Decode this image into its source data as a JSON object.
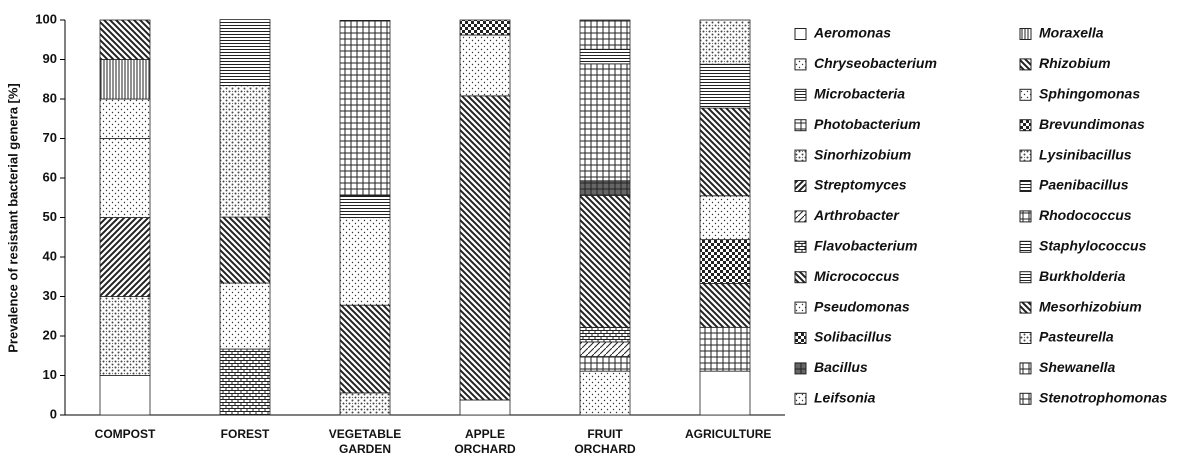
{
  "chart_data": {
    "type": "bar",
    "stacked": true,
    "y_label": "Prevalence of resistant bacterial genera [%]",
    "categories": [
      "COMPOST",
      "FOREST",
      "VEGETABLE GARDEN",
      "APPLE ORCHARD",
      "FRUIT ORCHARD",
      "AGRICULTURE"
    ],
    "ylim": [
      0,
      100
    ],
    "yticks": [
      0,
      10,
      20,
      30,
      40,
      50,
      60,
      70,
      80,
      90,
      100
    ],
    "series": [
      {
        "name": "Aeromonas",
        "values": [
          10,
          null,
          null,
          3.8,
          null,
          11.1
        ]
      },
      {
        "name": "Chryseobacterium",
        "values": [
          null,
          null,
          null,
          null,
          11.1,
          null
        ]
      },
      {
        "name": "Microbacteria",
        "values": [
          null,
          null,
          null,
          null,
          null,
          null
        ]
      },
      {
        "name": "Photobacterium",
        "values": [
          null,
          null,
          null,
          null,
          3.7,
          11.1
        ]
      },
      {
        "name": "Sinorhizobium",
        "values": [
          20,
          null,
          5.6,
          null,
          null,
          null
        ]
      },
      {
        "name": "Streptomyces",
        "values": [
          20,
          null,
          null,
          null,
          null,
          null
        ]
      },
      {
        "name": "Arthrobacter",
        "values": [
          null,
          null,
          null,
          null,
          3.7,
          null
        ]
      },
      {
        "name": "Flavobacterium",
        "values": [
          null,
          16.7,
          null,
          null,
          3.7,
          null
        ]
      },
      {
        "name": "Micrococcus",
        "values": [
          null,
          null,
          22.2,
          77,
          33.4,
          11.1
        ]
      },
      {
        "name": "Pseudomonas",
        "values": [
          20,
          16.7,
          null,
          15.4,
          null,
          null
        ]
      },
      {
        "name": "Solibacillus",
        "values": [
          null,
          null,
          null,
          null,
          null,
          11.1
        ]
      },
      {
        "name": "Bacillus",
        "values": [
          null,
          null,
          null,
          null,
          3.7,
          null
        ]
      },
      {
        "name": "Leifsonia",
        "values": [
          10,
          null,
          22.2,
          null,
          null,
          11.1
        ]
      },
      {
        "name": "Moraxella",
        "values": [
          10,
          null,
          null,
          null,
          null,
          null
        ]
      },
      {
        "name": "Rhizobium",
        "values": [
          10,
          16.7,
          null,
          null,
          null,
          22.2
        ]
      },
      {
        "name": "Sphingomonas",
        "values": [
          null,
          null,
          null,
          null,
          null,
          null
        ]
      },
      {
        "name": "Brevundimonas",
        "values": [
          null,
          null,
          null,
          3.8,
          null,
          null
        ]
      },
      {
        "name": "Lysinibacillus",
        "values": [
          null,
          33.3,
          null,
          null,
          null,
          null
        ]
      },
      {
        "name": "Paenibacillus",
        "values": [
          null,
          null,
          5.5,
          null,
          null,
          null
        ]
      },
      {
        "name": "Rhodococcus",
        "values": [
          null,
          null,
          44.4,
          null,
          29.6,
          null
        ]
      },
      {
        "name": "Staphylococcus",
        "values": [
          null,
          null,
          null,
          null,
          3.7,
          null
        ]
      },
      {
        "name": "Burkholderia",
        "values": [
          null,
          16.7,
          null,
          null,
          null,
          11.1
        ]
      },
      {
        "name": "Mesorhizobium",
        "values": [
          null,
          null,
          null,
          null,
          null,
          null
        ]
      },
      {
        "name": "Pasteurella",
        "values": [
          null,
          null,
          null,
          null,
          null,
          11.2
        ]
      },
      {
        "name": "Shewanella",
        "values": [
          null,
          null,
          null,
          null,
          7.4,
          null
        ]
      },
      {
        "name": "Stenotrophomonas",
        "values": [
          null,
          null,
          null,
          null,
          null,
          null
        ]
      }
    ]
  }
}
